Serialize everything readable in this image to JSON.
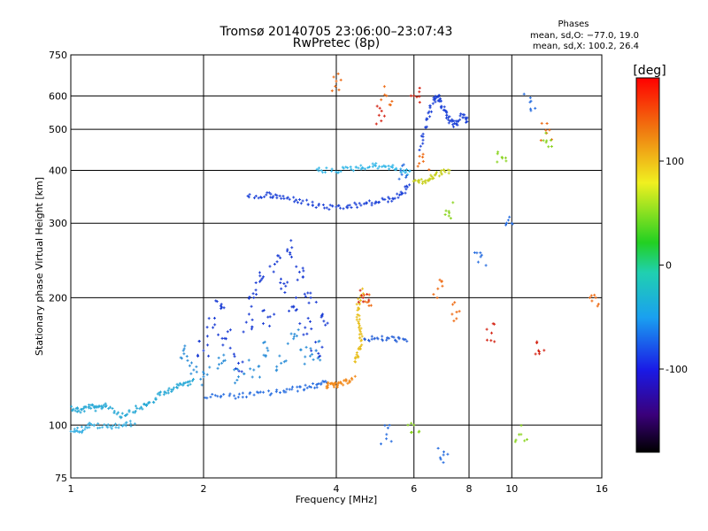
{
  "chart_data": {
    "type": "scatter",
    "title": "Tromsø 20140705 23:06:00–23:07:43",
    "subtitle": "RwPretec (8p)",
    "xlabel": "Frequency [MHz]",
    "ylabel": "Stationary phase Virtual Height [km]",
    "xscale": "log",
    "yscale": "log",
    "xlim": [
      1,
      16
    ],
    "ylim": [
      75,
      750
    ],
    "x_ticks": [
      1,
      2,
      4,
      6,
      8,
      10,
      16
    ],
    "y_ticks": [
      75,
      100,
      200,
      300,
      400,
      500,
      600,
      750
    ],
    "grid": true,
    "phases_box": {
      "title": "Phases",
      "line_o": "mean, sd,O: −77.0, 19.0",
      "line_x": "mean, sd,X: 100.2, 26.4"
    },
    "colorbar": {
      "label": "[deg]",
      "range": [
        -180,
        180
      ],
      "ticks": [
        100,
        0,
        -100
      ]
    },
    "traces": [
      {
        "name": "",
        "color": "#29a9d6",
        "points": [
          [
            1.0,
            110
          ],
          [
            1.05,
            108
          ],
          [
            1.1,
            111
          ],
          [
            1.15,
            109
          ],
          [
            1.2,
            112
          ],
          [
            1.3,
            105
          ],
          [
            1.4,
            109
          ],
          [
            1.5,
            112
          ],
          [
            1.6,
            118
          ],
          [
            1.7,
            122
          ],
          [
            1.8,
            125
          ],
          [
            1.9,
            127
          ]
        ]
      },
      {
        "name": "",
        "color": "#3fb3e4",
        "points": [
          [
            1.0,
            98
          ],
          [
            1.05,
            97
          ],
          [
            1.1,
            100
          ],
          [
            1.2,
            99
          ],
          [
            1.3,
            100
          ],
          [
            1.4,
            101
          ]
        ]
      },
      {
        "name": "",
        "color": "#2a6fe0",
        "points": [
          [
            2.0,
            117
          ],
          [
            2.3,
            117
          ],
          [
            2.6,
            118
          ],
          [
            3.0,
            120
          ],
          [
            3.3,
            122
          ],
          [
            3.6,
            124
          ],
          [
            3.8,
            128
          ]
        ]
      },
      {
        "name": "",
        "color": "#f28a1c",
        "points": [
          [
            3.8,
            123
          ],
          [
            3.9,
            125
          ],
          [
            4.0,
            124
          ],
          [
            4.2,
            126
          ],
          [
            4.4,
            130
          ]
        ]
      },
      {
        "name": "",
        "color": "#e8c020",
        "points": [
          [
            4.4,
            140
          ],
          [
            4.5,
            150
          ],
          [
            4.55,
            160
          ],
          [
            4.5,
            175
          ],
          [
            4.45,
            190
          ],
          [
            4.6,
            210
          ]
        ]
      },
      {
        "name": "",
        "color": "#2a63d8",
        "points": [
          [
            4.6,
            160
          ],
          [
            5.0,
            160
          ],
          [
            5.4,
            160
          ],
          [
            5.8,
            158
          ]
        ]
      },
      {
        "name": "",
        "color": "#1f44d8",
        "points": [
          [
            2.5,
            345
          ],
          [
            2.8,
            350
          ],
          [
            3.0,
            345
          ],
          [
            3.3,
            340
          ],
          [
            3.6,
            330
          ],
          [
            4.0,
            325
          ],
          [
            4.4,
            330
          ],
          [
            4.8,
            335
          ],
          [
            5.2,
            340
          ],
          [
            5.6,
            350
          ],
          [
            5.9,
            370
          ]
        ]
      },
      {
        "name": "",
        "color": "#37b8e8",
        "points": [
          [
            3.6,
            400
          ],
          [
            4.0,
            400
          ],
          [
            4.4,
            405
          ],
          [
            4.8,
            410
          ],
          [
            5.2,
            410
          ],
          [
            5.6,
            400
          ],
          [
            5.9,
            395
          ]
        ]
      },
      {
        "name": "",
        "color": "#c8d020",
        "points": [
          [
            6.0,
            380
          ],
          [
            6.3,
            375
          ],
          [
            6.6,
            385
          ],
          [
            6.9,
            395
          ],
          [
            7.2,
            400
          ]
        ]
      },
      {
        "name": "",
        "color": "#1f44d8",
        "points": [
          [
            6.2,
            450
          ],
          [
            6.4,
            520
          ],
          [
            6.6,
            580
          ],
          [
            6.8,
            600
          ],
          [
            7.0,
            560
          ],
          [
            7.2,
            530
          ],
          [
            7.4,
            510
          ],
          [
            7.7,
            540
          ],
          [
            8.0,
            520
          ]
        ]
      }
    ],
    "scattered_points": [
      {
        "color": "#1a3cd4",
        "points": [
          [
            2.0,
            150
          ],
          [
            2.1,
            170
          ],
          [
            2.2,
            190
          ],
          [
            2.25,
            160
          ],
          [
            2.4,
            140
          ],
          [
            2.5,
            175
          ],
          [
            2.6,
            200
          ],
          [
            2.7,
            220
          ],
          [
            2.8,
            180
          ],
          [
            2.9,
            240
          ],
          [
            3.0,
            210
          ],
          [
            3.1,
            260
          ],
          [
            3.2,
            190
          ],
          [
            3.3,
            230
          ],
          [
            3.4,
            170
          ],
          [
            3.5,
            200
          ],
          [
            3.6,
            150
          ],
          [
            3.7,
            180
          ]
        ]
      },
      {
        "color": "#2c8ed8",
        "points": [
          [
            1.8,
            150
          ],
          [
            1.9,
            135
          ],
          [
            2.0,
            130
          ],
          [
            2.2,
            140
          ],
          [
            2.4,
            130
          ],
          [
            2.6,
            135
          ],
          [
            2.8,
            150
          ],
          [
            3.0,
            140
          ],
          [
            3.2,
            160
          ],
          [
            3.4,
            145
          ],
          [
            3.6,
            150
          ]
        ]
      },
      {
        "color": "#ee6a12",
        "points": [
          [
            4.0,
            650
          ],
          [
            4.7,
            195
          ],
          [
            5.2,
            600
          ],
          [
            6.3,
            420
          ],
          [
            6.8,
            210
          ],
          [
            7.5,
            185
          ],
          [
            12.0,
            490
          ],
          [
            15.5,
            200
          ]
        ]
      },
      {
        "color": "#d42414",
        "points": [
          [
            6.0,
            600
          ],
          [
            4.6,
            200
          ],
          [
            5.0,
            540
          ],
          [
            9.0,
            165
          ],
          [
            11.5,
            150
          ]
        ]
      },
      {
        "color": "#2a6fe0",
        "points": [
          [
            5.2,
            95
          ],
          [
            7.0,
            85
          ],
          [
            10.0,
            300
          ],
          [
            8.5,
            250
          ],
          [
            5.6,
            400
          ],
          [
            11.0,
            580
          ]
        ]
      },
      {
        "color": "#8ad420",
        "points": [
          [
            7.2,
            320
          ],
          [
            9.5,
            430
          ],
          [
            12.0,
            470
          ],
          [
            6.0,
            100
          ],
          [
            10.5,
            95
          ]
        ]
      }
    ]
  }
}
